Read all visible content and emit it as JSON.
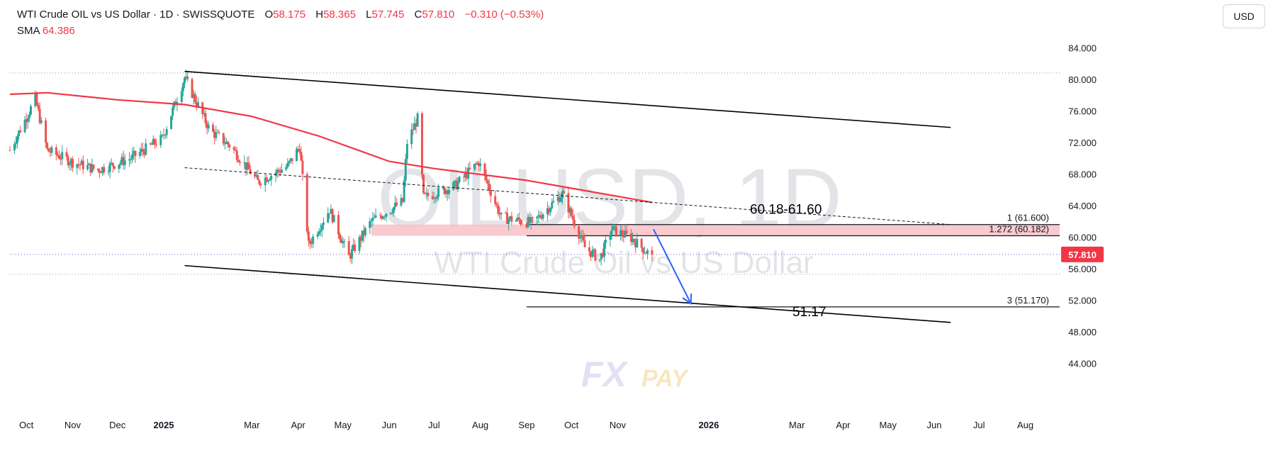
{
  "header": {
    "symbol_title": "WTI Crude OIL vs US Dollar · 1D · SWISSQUOTE",
    "open_label": "O",
    "open": "58.175",
    "high_label": "H",
    "high": "58.365",
    "low_label": "L",
    "low": "57.745",
    "close_label": "C",
    "close": "57.810",
    "change": "−0.310 (−0.53%)",
    "sma_label": "SMA",
    "sma_value": "64.386"
  },
  "currency_button": "USD",
  "watermark": {
    "symbol": "OILUSD, 1D",
    "description": "WTI Crude Oil vs US Dollar",
    "logo_fx": "FX",
    "logo_pay": "PAY"
  },
  "colors": {
    "up": "#26a69a",
    "down": "#ef5350",
    "sma": "#f23645",
    "zone_fill": "#f8c1c6",
    "arrow": "#2962ff",
    "price_tag": "#f23645"
  },
  "chart_data": {
    "type": "candlestick",
    "symbol": "OILUSD",
    "interval": "1D",
    "ylim": [
      42,
      86
    ],
    "y_ticks": [
      "84.000",
      "80.000",
      "76.000",
      "72.000",
      "68.000",
      "64.000",
      "60.000",
      "56.000",
      "52.000",
      "48.000",
      "44.000"
    ],
    "x_ticks": [
      "Oct",
      "Nov",
      "Dec",
      "2025",
      "Mar",
      "Apr",
      "May",
      "Jun",
      "Jul",
      "Aug",
      "Sep",
      "Oct",
      "Nov",
      "2026",
      "Mar",
      "Apr",
      "May",
      "Jun",
      "Jul",
      "Aug"
    ],
    "x_tick_dates": [
      "2024-10-01",
      "2024-11-01",
      "2024-12-01",
      "2025-01-01",
      "2025-03-01",
      "2025-04-01",
      "2025-05-01",
      "2025-06-01",
      "2025-07-01",
      "2025-08-01",
      "2025-09-01",
      "2025-10-01",
      "2025-11-01",
      "2026-01-01",
      "2026-03-01",
      "2026-04-01",
      "2026-05-01",
      "2026-06-01",
      "2026-07-01",
      "2026-08-01"
    ],
    "x_range": [
      "2024-09-20",
      "2026-08-24"
    ],
    "price_keypoints": [
      [
        "2024-09-20",
        71.0
      ],
      [
        "2024-10-07",
        77.5
      ],
      [
        "2024-10-15",
        71.0
      ],
      [
        "2024-11-01",
        69.5
      ],
      [
        "2024-11-18",
        68.5
      ],
      [
        "2024-12-10",
        70.0
      ],
      [
        "2024-12-31",
        72.5
      ],
      [
        "2025-01-15",
        80.2
      ],
      [
        "2025-02-01",
        73.5
      ],
      [
        "2025-02-15",
        71.5
      ],
      [
        "2025-03-05",
        67.0
      ],
      [
        "2025-03-25",
        69.0
      ],
      [
        "2025-04-02",
        71.5
      ],
      [
        "2025-04-08",
        59.0
      ],
      [
        "2025-04-22",
        63.5
      ],
      [
        "2025-05-05",
        57.5
      ],
      [
        "2025-05-20",
        62.0
      ],
      [
        "2025-06-10",
        64.5
      ],
      [
        "2025-06-13",
        72.0
      ],
      [
        "2025-06-20",
        75.0
      ],
      [
        "2025-06-24",
        65.0
      ],
      [
        "2025-07-15",
        66.5
      ],
      [
        "2025-07-31",
        69.5
      ],
      [
        "2025-08-15",
        62.5
      ],
      [
        "2025-09-05",
        61.8
      ],
      [
        "2025-09-25",
        65.5
      ],
      [
        "2025-10-10",
        58.7
      ],
      [
        "2025-10-20",
        57.2
      ],
      [
        "2025-10-28",
        61.0
      ],
      [
        "2025-11-10",
        59.9
      ],
      [
        "2025-11-20",
        58.2
      ],
      [
        "2025-11-24",
        57.81
      ]
    ],
    "sma": {
      "name": "SMA",
      "value": 64.386,
      "keypoints": [
        [
          "2024-09-20",
          78.1
        ],
        [
          "2024-10-15",
          78.3
        ],
        [
          "2024-12-01",
          77.4
        ],
        [
          "2025-01-15",
          76.8
        ],
        [
          "2025-03-01",
          75.3
        ],
        [
          "2025-04-15",
          72.8
        ],
        [
          "2025-06-01",
          69.6
        ],
        [
          "2025-07-01",
          68.7
        ],
        [
          "2025-09-01",
          67.2
        ],
        [
          "2025-10-01",
          66.2
        ],
        [
          "2025-11-24",
          64.4
        ]
      ]
    },
    "channel": {
      "upper": [
        [
          "2025-01-15",
          81.0
        ],
        [
          "2026-06-12",
          73.9
        ]
      ],
      "lower": [
        [
          "2025-01-15",
          56.4
        ],
        [
          "2026-06-12",
          49.2
        ]
      ]
    },
    "dashed_trendline": [
      [
        "2025-01-15",
        68.8
      ],
      [
        "2026-06-12",
        61.6
      ]
    ],
    "fib_levels": [
      {
        "label": "1 (61.600)",
        "value": 61.6
      },
      {
        "label": "1.272 (60.182)",
        "value": 60.182
      },
      {
        "label": "3 (51.170)",
        "value": 51.17
      }
    ],
    "zone": {
      "from": 60.18,
      "to": 61.6,
      "label": "60.18-61.60"
    },
    "target": {
      "value": 51.17,
      "label": "51.17"
    },
    "forecast_arrow": [
      [
        "2025-11-25",
        61.0
      ],
      [
        "2025-12-20",
        51.6
      ]
    ],
    "dotted_levels": [
      80.8,
      57.81,
      55.3
    ],
    "last_price": "57.810"
  }
}
